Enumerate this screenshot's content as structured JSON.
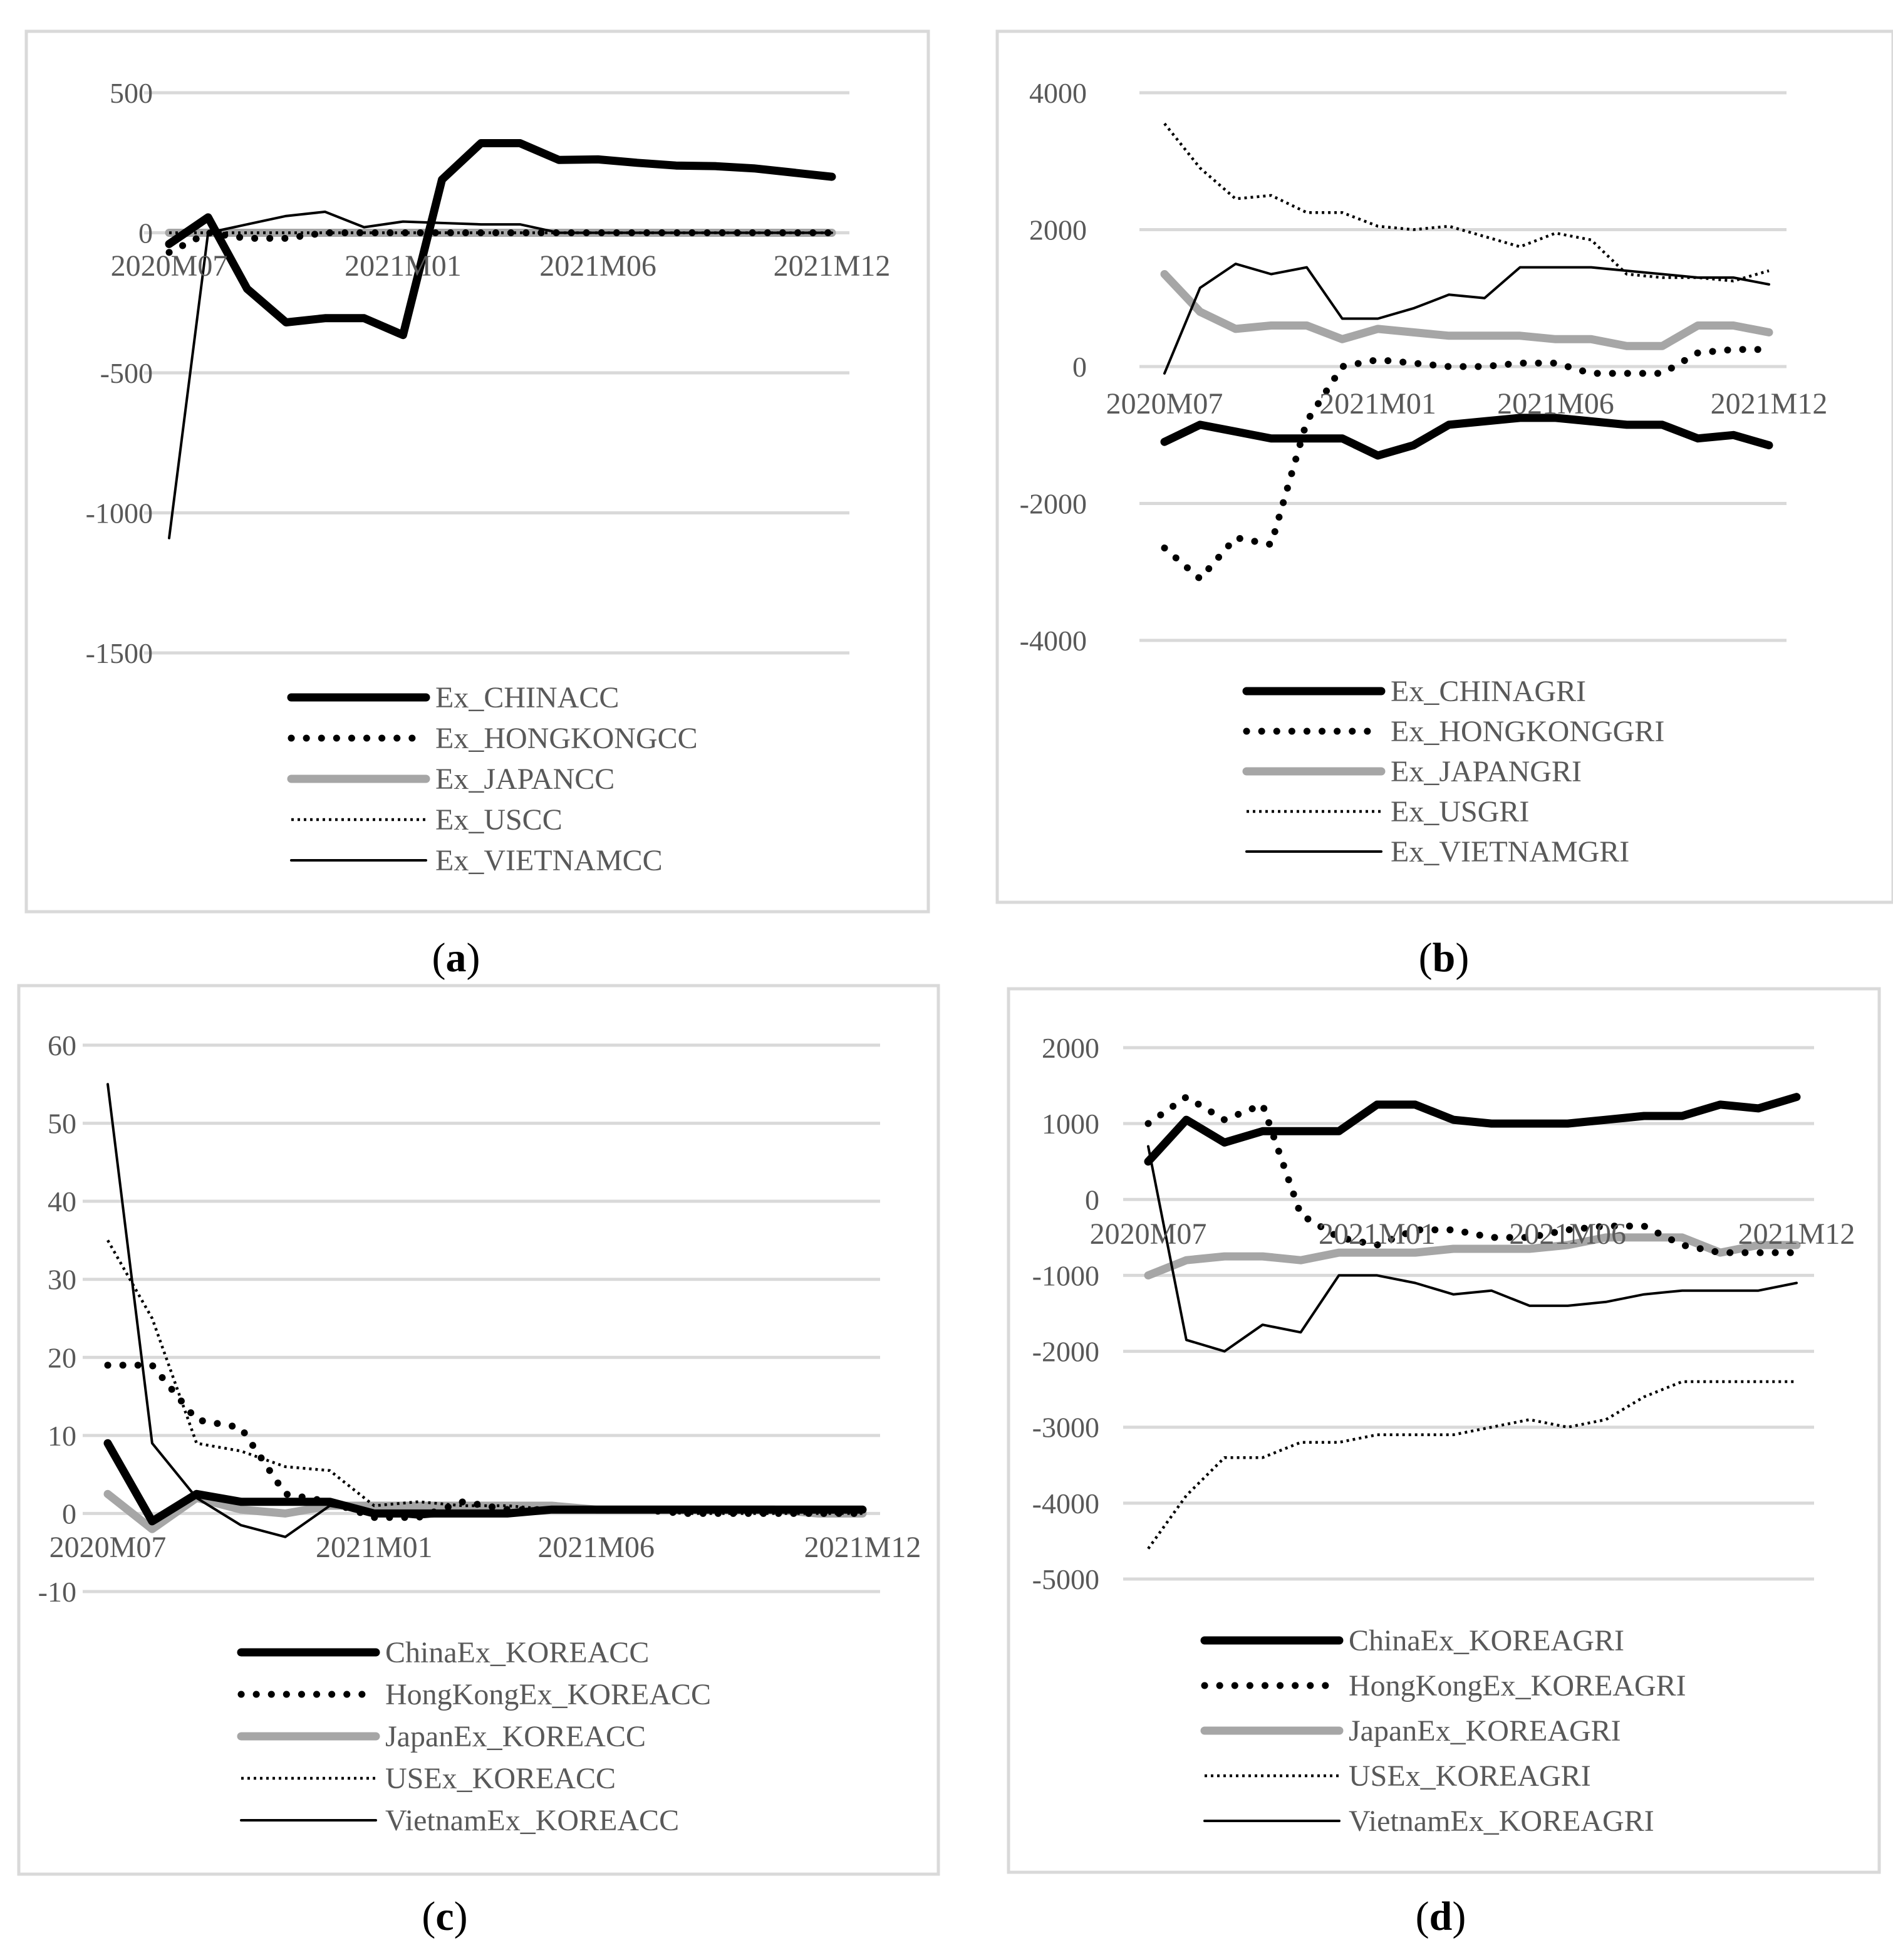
{
  "chart_data": [
    {
      "panel": "a",
      "caption": "(a)",
      "type": "line",
      "ylim": [
        -1500,
        500
      ],
      "yticks": [
        500,
        0,
        -500,
        -1000,
        -1500
      ],
      "ytick_labels": [
        "500",
        "0",
        "-500",
        "-1000",
        "-1500"
      ],
      "xtick_labels": [
        {
          "index": 0,
          "label": "2020M07"
        },
        {
          "index": 6,
          "label": "2021M01"
        },
        {
          "index": 11,
          "label": "2021M06"
        },
        {
          "index": 17,
          "label": "2021M12"
        }
      ],
      "n_points": 18,
      "grid": true,
      "legend_position": "bottom",
      "series": [
        {
          "name": "Ex_CHINACC",
          "style": "thick-black",
          "values": [
            -40,
            55,
            -200,
            -320,
            -305,
            -305,
            -365,
            190,
            320,
            320,
            260,
            262,
            250,
            240,
            238,
            230,
            215,
            200
          ]
        },
        {
          "name": "Ex_HONGKONGCC",
          "style": "dotted-black",
          "values": [
            -70,
            0,
            -20,
            -20,
            0,
            0,
            0,
            0,
            0,
            0,
            0,
            0,
            0,
            0,
            0,
            0,
            0,
            0
          ]
        },
        {
          "name": "Ex_JAPANCC",
          "style": "gray",
          "values": [
            0,
            0,
            0,
            0,
            0,
            0,
            0,
            0,
            0,
            0,
            0,
            0,
            0,
            0,
            0,
            0,
            0,
            0
          ]
        },
        {
          "name": "Ex_USCC",
          "style": "fine-dotted",
          "values": [
            0,
            0,
            0,
            0,
            0,
            0,
            0,
            0,
            0,
            0,
            0,
            0,
            0,
            0,
            0,
            0,
            0,
            0
          ]
        },
        {
          "name": "Ex_VIETNAMCC",
          "style": "thin-black",
          "values": [
            -1090,
            0,
            30,
            60,
            75,
            20,
            40,
            35,
            30,
            30,
            0,
            0,
            0,
            0,
            0,
            0,
            0,
            0
          ]
        }
      ]
    },
    {
      "panel": "b",
      "caption": "(b)",
      "type": "line",
      "ylim": [
        -4000,
        4000
      ],
      "yticks": [
        4000,
        2000,
        0,
        -2000,
        -4000
      ],
      "ytick_labels": [
        "4000",
        "2000",
        "0",
        "-2000",
        "-4000"
      ],
      "xtick_labels": [
        {
          "index": 0,
          "label": "2020M07"
        },
        {
          "index": 6,
          "label": "2021M01"
        },
        {
          "index": 11,
          "label": "2021M06"
        },
        {
          "index": 17,
          "label": "2021M12"
        }
      ],
      "n_points": 18,
      "grid": true,
      "legend_position": "bottom",
      "series": [
        {
          "name": "Ex_CHINAGRI",
          "style": "thick-black",
          "values": [
            -1100,
            -850,
            -950,
            -1050,
            -1050,
            -1050,
            -1300,
            -1150,
            -850,
            -800,
            -750,
            -750,
            -800,
            -850,
            -850,
            -1050,
            -1000,
            -1150
          ]
        },
        {
          "name": "Ex_HONGKONGGRI",
          "style": "dotted-black",
          "values": [
            -2650,
            -3100,
            -2500,
            -2600,
            -800,
            0,
            100,
            50,
            0,
            0,
            50,
            50,
            -100,
            -100,
            -100,
            200,
            250,
            250
          ]
        },
        {
          "name": "Ex_JAPANGRI",
          "style": "gray",
          "values": [
            1350,
            800,
            550,
            600,
            600,
            400,
            550,
            500,
            450,
            450,
            450,
            400,
            400,
            300,
            300,
            600,
            600,
            500
          ]
        },
        {
          "name": "Ex_USGRI",
          "style": "fine-dotted",
          "values": [
            3550,
            2900,
            2450,
            2500,
            2250,
            2250,
            2050,
            2000,
            2050,
            1900,
            1750,
            1950,
            1850,
            1350,
            1300,
            1300,
            1250,
            1400
          ]
        },
        {
          "name": "Ex_VIETNAMGRI",
          "style": "thin-black",
          "values": [
            -100,
            1150,
            1500,
            1350,
            1450,
            700,
            700,
            850,
            1050,
            1000,
            1450,
            1450,
            1450,
            1400,
            1350,
            1300,
            1300,
            1200
          ]
        }
      ]
    },
    {
      "panel": "c",
      "caption": "(c)",
      "type": "line",
      "ylim": [
        -10,
        60
      ],
      "yticks": [
        60,
        50,
        40,
        30,
        20,
        10,
        0,
        -10
      ],
      "ytick_labels": [
        "60",
        "50",
        "40",
        "30",
        "20",
        "10",
        "0",
        "-10"
      ],
      "xtick_labels": [
        {
          "index": 0,
          "label": "2020M07"
        },
        {
          "index": 6,
          "label": "2021M01"
        },
        {
          "index": 11,
          "label": "2021M06"
        },
        {
          "index": 17,
          "label": "2021M12"
        }
      ],
      "n_points": 18,
      "grid": true,
      "legend_position": "bottom",
      "series": [
        {
          "name": "ChinaEx_KOREACC",
          "style": "thick-black",
          "values": [
            9,
            -1,
            2.5,
            1.5,
            1.5,
            1.5,
            0,
            0,
            0,
            0,
            0.5,
            0.5,
            0.5,
            0.5,
            0.5,
            0.5,
            0.5,
            0.5
          ]
        },
        {
          "name": "HongKongEx_KOREACC",
          "style": "dotted-black",
          "values": [
            19,
            19,
            12,
            11,
            2.5,
            1.5,
            -0.5,
            -0.5,
            1.5,
            0.5,
            0.5,
            0.5,
            0.5,
            0,
            0,
            0,
            0,
            0
          ]
        },
        {
          "name": "JapanEx_KOREACC",
          "style": "gray",
          "values": [
            2.5,
            -2,
            2,
            0.5,
            0,
            1,
            1,
            1,
            1,
            1,
            1,
            0.5,
            0.5,
            0.5,
            0.5,
            0.5,
            0,
            0
          ]
        },
        {
          "name": "USEx_KOREACC",
          "style": "fine-dotted",
          "values": [
            35,
            25,
            9,
            8,
            6,
            5.5,
            1,
            1.5,
            1,
            1,
            0.5,
            0.5,
            0.5,
            0,
            0,
            0,
            0,
            0
          ]
        },
        {
          "name": "VietnamEx_KOREACC",
          "style": "thin-black",
          "values": [
            55,
            9,
            2,
            -1.5,
            -3,
            1,
            0,
            -0.5,
            0,
            0,
            0.5,
            0.5,
            0.5,
            0.5,
            0.5,
            0.5,
            0.5,
            0.5
          ]
        }
      ]
    },
    {
      "panel": "d",
      "caption": "(d)",
      "type": "line",
      "ylim": [
        -5000,
        2000
      ],
      "yticks": [
        2000,
        1000,
        0,
        -1000,
        -2000,
        -3000,
        -4000,
        -5000
      ],
      "ytick_labels": [
        "2000",
        "1000",
        "0",
        "-1000",
        "-2000",
        "-3000",
        "-4000",
        "-5000"
      ],
      "xtick_labels": [
        {
          "index": 0,
          "label": "2020M07"
        },
        {
          "index": 6,
          "label": "2021M01"
        },
        {
          "index": 11,
          "label": "2021M06"
        },
        {
          "index": 17,
          "label": "2021M12"
        }
      ],
      "n_points": 18,
      "grid": true,
      "legend_position": "bottom",
      "series": [
        {
          "name": "ChinaEx_KOREAGRI",
          "style": "thick-black",
          "values": [
            500,
            1050,
            750,
            900,
            900,
            900,
            1250,
            1250,
            1050,
            1000,
            1000,
            1000,
            1050,
            1100,
            1100,
            1250,
            1200,
            1350
          ]
        },
        {
          "name": "HongKongEx_KOREAGRI",
          "style": "dotted-black",
          "values": [
            1000,
            1350,
            1050,
            1250,
            -200,
            -500,
            -600,
            -400,
            -400,
            -500,
            -500,
            -400,
            -350,
            -350,
            -600,
            -700,
            -700,
            -700
          ]
        },
        {
          "name": "JapanEx_KOREAGRI",
          "style": "gray",
          "values": [
            -1000,
            -800,
            -750,
            -750,
            -800,
            -700,
            -700,
            -700,
            -650,
            -650,
            -650,
            -600,
            -500,
            -500,
            -500,
            -700,
            -600,
            -600
          ]
        },
        {
          "name": "USEx_KOREAGRI",
          "style": "fine-dotted",
          "values": [
            -4600,
            -3900,
            -3400,
            -3400,
            -3200,
            -3200,
            -3100,
            -3100,
            -3100,
            -3000,
            -2900,
            -3000,
            -2900,
            -2600,
            -2400,
            -2400,
            -2400,
            -2400
          ]
        },
        {
          "name": "VietnamEx_KOREAGRI",
          "style": "thin-black",
          "values": [
            700,
            -1850,
            -2000,
            -1650,
            -1750,
            -1000,
            -1000,
            -1100,
            -1250,
            -1200,
            -1400,
            -1400,
            -1350,
            -1250,
            -1200,
            -1200,
            -1200,
            -1100
          ]
        }
      ]
    }
  ]
}
